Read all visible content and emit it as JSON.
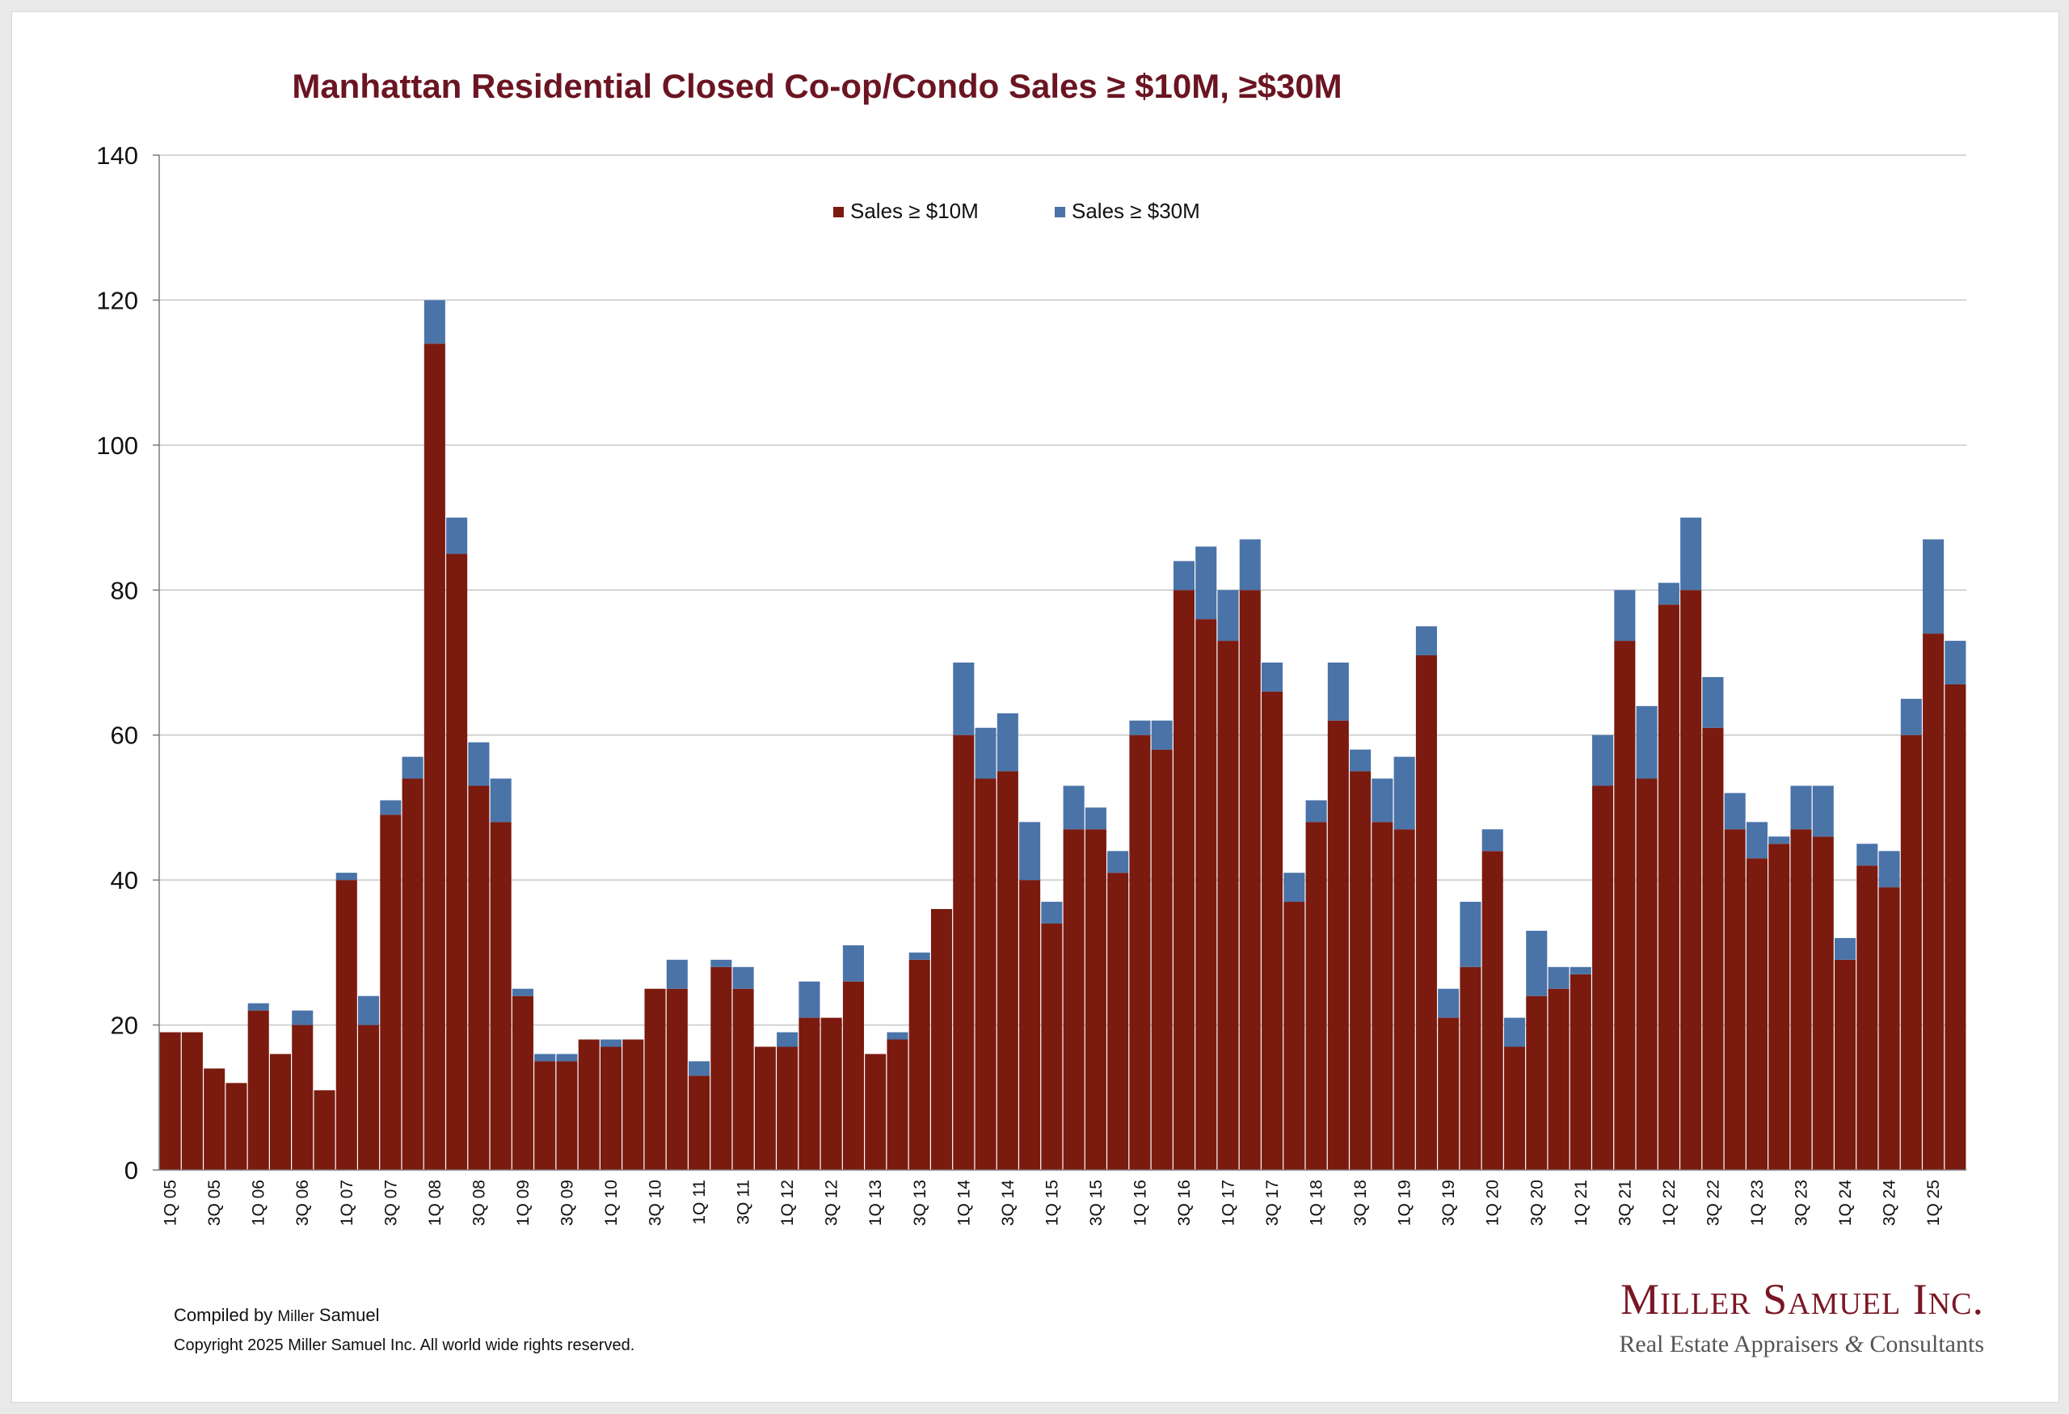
{
  "colors": {
    "sales_10m": "#7b1a0f",
    "sales_30m": "#4a73a8",
    "title": "#6b1522",
    "grid": "#c8c8c8"
  },
  "footer": {
    "compiled_prefix": "Compiled by ",
    "compiled_small": "Miller",
    "compiled_suffix": " Samuel",
    "copyright": "Copyright 2025 Miller Samuel Inc.  All world wide rights reserved."
  },
  "logo": {
    "name": "Miller Samuel Inc.",
    "tagline_left": "Real Estate Appraisers ",
    "tagline_amp": "&",
    "tagline_right": " Consultants"
  },
  "chart_data": {
    "type": "bar",
    "stacked": true,
    "title": "Manhattan Residential Closed Co-op/Condo Sales ≥ $10M, ≥$30M",
    "xlabel": "",
    "ylabel": "",
    "ylim": [
      0,
      140
    ],
    "yticks": [
      0,
      20,
      40,
      60,
      80,
      100,
      120,
      140
    ],
    "grid": true,
    "legend_position": "top-center",
    "categories": [
      "1Q 05",
      "2Q 05",
      "3Q 05",
      "4Q 05",
      "1Q 06",
      "2Q 06",
      "3Q 06",
      "4Q 06",
      "1Q 07",
      "2Q 07",
      "3Q 07",
      "4Q 07",
      "1Q 08",
      "2Q 08",
      "3Q 08",
      "4Q 08",
      "1Q 09",
      "2Q 09",
      "3Q 09",
      "4Q 09",
      "1Q 10",
      "2Q 10",
      "3Q 10",
      "4Q 10",
      "1Q 11",
      "2Q 11",
      "3Q 11",
      "4Q 11",
      "1Q 12",
      "2Q 12",
      "3Q 12",
      "4Q 12",
      "1Q 13",
      "2Q 13",
      "3Q 13",
      "4Q 13",
      "1Q 14",
      "2Q 14",
      "3Q 14",
      "4Q 14",
      "1Q 15",
      "2Q 15",
      "3Q 15",
      "4Q 15",
      "1Q 16",
      "2Q 16",
      "3Q 16",
      "4Q 16",
      "1Q 17",
      "2Q 17",
      "3Q 17",
      "4Q 17",
      "1Q 18",
      "2Q 18",
      "3Q 18",
      "4Q 18",
      "1Q 19",
      "2Q 19",
      "3Q 19",
      "4Q 19",
      "1Q 20",
      "2Q 20",
      "3Q 20",
      "4Q 20",
      "1Q 21",
      "2Q 21",
      "3Q 21",
      "4Q 21",
      "1Q 22",
      "2Q 22",
      "3Q 22",
      "4Q 22",
      "1Q 23",
      "2Q 23",
      "3Q 23",
      "4Q 23",
      "1Q 24",
      "2Q 24",
      "3Q 24",
      "4Q 24",
      "1Q 25",
      "2Q 25"
    ],
    "visible_tick_labels": [
      "1Q 05",
      "3Q 05",
      "1Q 06",
      "3Q 06",
      "1Q 07",
      "3Q 07",
      "1Q 08",
      "3Q 08",
      "1Q 09",
      "3Q 09",
      "1Q 10",
      "3Q 10",
      "1Q 11",
      "3Q 11",
      "1Q 12",
      "3Q 12",
      "1Q 13",
      "3Q 13",
      "1Q 14",
      "3Q 14",
      "1Q 15",
      "3Q 15",
      "1Q 16",
      "3Q 16",
      "1Q 17",
      "3Q 17",
      "1Q 18",
      "3Q 18",
      "1Q 19",
      "3Q 19",
      "1Q 20",
      "3Q 20",
      "1Q 21",
      "3Q 21",
      "1Q 22",
      "3Q 22",
      "1Q 23",
      "3Q 23",
      "1Q 24",
      "3Q 24",
      "1Q 25"
    ],
    "series": [
      {
        "name": "Sales ≥ $10M",
        "values": [
          19,
          19,
          14,
          12,
          22,
          16,
          20,
          11,
          40,
          20,
          49,
          54,
          114,
          85,
          53,
          48,
          24,
          15,
          15,
          18,
          17,
          18,
          25,
          25,
          13,
          28,
          25,
          17,
          17,
          21,
          21,
          26,
          16,
          18,
          29,
          36,
          60,
          54,
          55,
          40,
          34,
          47,
          47,
          41,
          60,
          58,
          80,
          76,
          73,
          80,
          66,
          37,
          48,
          62,
          55,
          48,
          47,
          71,
          21,
          28,
          44,
          17,
          24,
          25,
          27,
          53,
          73,
          54,
          78,
          80,
          61,
          47,
          43,
          45,
          47,
          46,
          29,
          42,
          39,
          60,
          74,
          67
        ]
      },
      {
        "name": "Sales ≥ $30M",
        "values": [
          0,
          0,
          0,
          0,
          1,
          0,
          2,
          0,
          1,
          4,
          2,
          3,
          6,
          5,
          6,
          6,
          1,
          1,
          1,
          0,
          1,
          0,
          0,
          4,
          2,
          1,
          3,
          0,
          2,
          5,
          0,
          5,
          0,
          1,
          1,
          0,
          10,
          7,
          8,
          8,
          3,
          6,
          3,
          3,
          2,
          4,
          4,
          10,
          7,
          7,
          4,
          4,
          3,
          8,
          3,
          6,
          10,
          4,
          4,
          9,
          3,
          4,
          9,
          3,
          1,
          7,
          7,
          10,
          3,
          10,
          7,
          5,
          5,
          1,
          6,
          7,
          3,
          3,
          5,
          5,
          13,
          6
        ]
      }
    ]
  }
}
